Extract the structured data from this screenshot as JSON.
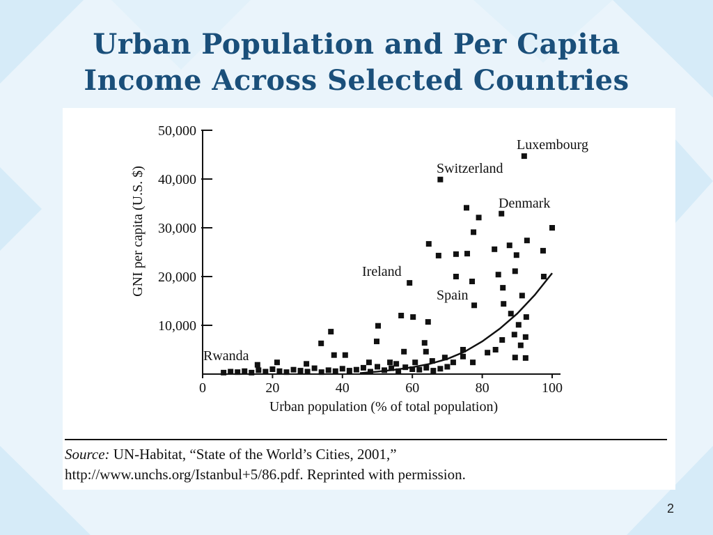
{
  "title_lines": [
    "Urban Population and Per Capita",
    "Income Across Selected Countries"
  ],
  "chart_data": {
    "type": "scatter",
    "xlabel": "Urban population (% of total population)",
    "ylabel": "GNI per capita (U.S. $)",
    "xlim": [
      0,
      100
    ],
    "ylim": [
      0,
      50000
    ],
    "xticks": [
      0,
      20,
      40,
      60,
      80,
      100
    ],
    "yticks": [
      {
        "value": 10000,
        "label": "10,000"
      },
      {
        "value": 20000,
        "label": "20,000"
      },
      {
        "value": 30000,
        "label": "30,000"
      },
      {
        "value": 40000,
        "label": "40,000"
      },
      {
        "value": 50000,
        "label": "50,000"
      }
    ],
    "color": "#111111",
    "x": [
      92,
      68,
      75.5,
      79,
      85.5,
      100,
      77.5,
      64.7,
      67.5,
      72.5,
      75.7,
      83.5,
      87.8,
      89.8,
      92.8,
      97.4,
      84.6,
      89.4,
      72.5,
      77.1,
      97.6,
      85.9,
      91.4,
      59.2,
      86.1,
      77.7,
      88.2,
      92.6,
      56.8,
      60.2,
      64.5,
      50.2,
      90.4,
      36.7,
      33.9,
      49.8,
      89.2,
      92.4,
      85.7,
      91,
      63.5,
      37.6,
      40.8,
      57.6,
      63.9,
      74.5,
      81.5,
      83.8,
      74.5,
      89.4,
      92.4,
      69.3,
      77.3,
      53.6,
      47.6,
      65.7,
      71.7,
      60.8,
      55.4,
      21.3,
      29.7,
      15.7,
      6,
      8,
      10,
      12,
      14,
      16,
      18,
      20,
      22,
      24,
      26,
      28,
      30,
      32,
      34,
      36,
      38,
      40,
      42,
      44,
      46,
      48,
      50,
      52,
      54,
      56,
      58,
      60,
      62,
      64,
      66,
      68,
      70
    ],
    "values": [
      44700,
      39900,
      34100,
      32100,
      32900,
      30000,
      29100,
      26700,
      24300,
      24600,
      24700,
      25600,
      26400,
      24400,
      27400,
      25300,
      20400,
      21100,
      20000,
      19000,
      20000,
      17700,
      16100,
      18700,
      14400,
      14100,
      12400,
      11700,
      12000,
      11700,
      10700,
      9900,
      10100,
      8700,
      6300,
      6700,
      8100,
      7600,
      7000,
      5900,
      6400,
      3900,
      3900,
      4600,
      4600,
      5000,
      4400,
      5000,
      3600,
      3400,
      3300,
      3400,
      2400,
      2400,
      2400,
      2700,
      2400,
      2400,
      2100,
      2400,
      2100,
      1900,
      300,
      500,
      400,
      600,
      300,
      800,
      500,
      1000,
      600,
      400,
      900,
      700,
      500,
      1200,
      400,
      800,
      600,
      1100,
      700,
      900,
      1300,
      500,
      1500,
      800,
      1200,
      600,
      1400,
      1000,
      900,
      1300,
      700,
      1100,
      1500
    ],
    "trend": {
      "x": [
        45,
        50,
        55,
        60,
        65,
        70,
        75,
        80,
        85,
        90,
        95,
        100
      ],
      "values": [
        200,
        500,
        900,
        1400,
        2100,
        3100,
        4600,
        6700,
        9300,
        12400,
        16200,
        20700
      ]
    },
    "annotations": [
      "Luxembourg",
      "Switzerland",
      "Denmark",
      "Ireland",
      "Spain",
      "Rwanda"
    ]
  },
  "source_label": "Source:",
  "source": "UN-Habitat, “State of the World’s Cities, 2001,” http://www.unchs.org/Istanbul+5/86.pdf. Reprinted with permission.",
  "page_number": "2"
}
